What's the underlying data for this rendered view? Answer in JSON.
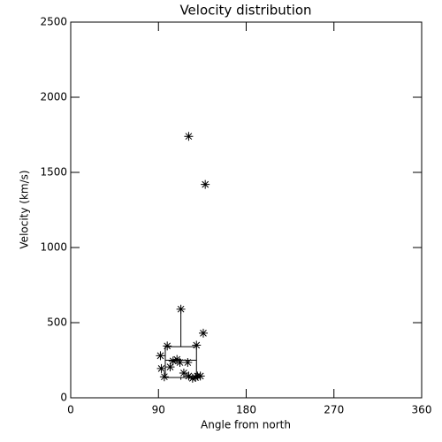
{
  "chart_data": {
    "type": "scatter",
    "title": "Velocity distribution",
    "x_label": "Angle from north",
    "y_label": "Velocity (km/s)",
    "x": [
      121,
      138,
      113,
      136,
      129,
      92,
      93,
      96,
      99,
      102,
      105,
      109,
      112,
      116,
      120,
      121,
      125,
      128,
      130,
      133
    ],
    "y": [
      1740,
      1420,
      590,
      430,
      350,
      280,
      195,
      140,
      345,
      205,
      245,
      255,
      235,
      165,
      235,
      145,
      130,
      135,
      145,
      145
    ],
    "color": "#000000",
    "box": {
      "x_range": [
        97,
        129
      ],
      "whisker_low": 120,
      "q1": 135,
      "median": 250,
      "q3": 340,
      "whisker_high": 590
    },
    "xlim": [
      0,
      360
    ],
    "xticks": [
      0,
      90,
      180,
      270,
      360
    ],
    "ylim": [
      0,
      2500
    ],
    "yticks": [
      0,
      500,
      1000,
      1500,
      2000,
      2500
    ]
  }
}
